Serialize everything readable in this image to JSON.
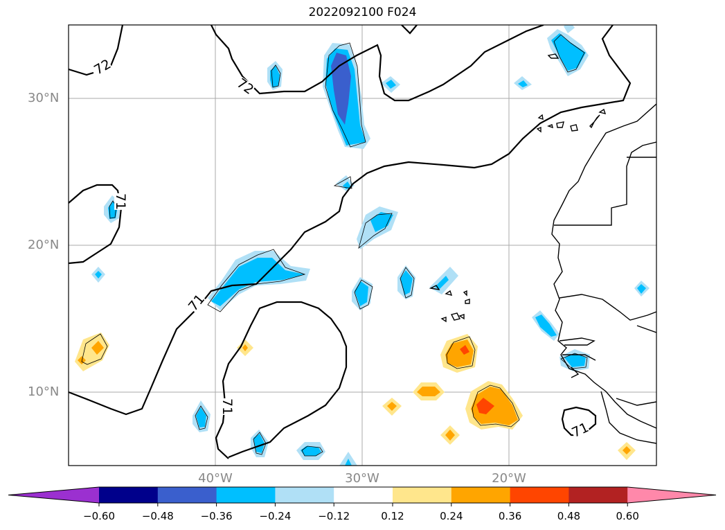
{
  "title": "2022092100 F024",
  "map": {
    "lat_labels": [
      "30°N",
      "20°N",
      "10°N"
    ],
    "lon_labels": [
      "40°W",
      "30°W",
      "20°W"
    ],
    "contour_labels": [
      "72",
      "72",
      "71",
      "71",
      "71",
      "71"
    ],
    "gridlines": true
  },
  "colorbar": {
    "ticks": [
      "−0.60",
      "−0.48",
      "−0.36",
      "−0.24",
      "−0.12",
      "0.12",
      "0.24",
      "0.36",
      "0.48",
      "0.60"
    ],
    "colors": [
      "#9b30d0",
      "#00008b",
      "#3a5fcd",
      "#00bfff",
      "#b0e0f6",
      "#ffffff",
      "#ffe68c",
      "#ffa500",
      "#ff4500",
      "#b22222",
      "#ff88aa"
    ]
  }
}
